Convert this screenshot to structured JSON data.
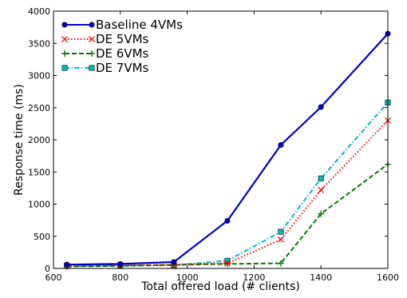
{
  "chart_data": {
    "type": "line",
    "title": "",
    "xlabel": "Total offered load (# clients)",
    "ylabel": "Response time (ms)",
    "xlim": [
      600,
      1600
    ],
    "ylim": [
      0,
      4000
    ],
    "xticks": [
      600,
      800,
      1000,
      1200,
      1400,
      1600
    ],
    "yticks": [
      0,
      500,
      1000,
      1500,
      2000,
      2500,
      3000,
      3500,
      4000
    ],
    "grid": false,
    "legend_position": "top-left",
    "series": [
      {
        "name": "Baseline 4VMs",
        "color": "#0000cc",
        "line_style": "solid",
        "marker": "circle",
        "x": [
          640,
          800,
          960,
          1120,
          1280,
          1400,
          1600
        ],
        "y": [
          60,
          70,
          100,
          740,
          1920,
          2510,
          3650
        ]
      },
      {
        "name": "DE 5VMs",
        "color": "#ff0000",
        "line_style": "dotted",
        "marker": "x",
        "x": [
          640,
          800,
          960,
          1120,
          1280,
          1400,
          1600
        ],
        "y": [
          45,
          50,
          60,
          80,
          450,
          1220,
          2300
        ]
      },
      {
        "name": "DE 6VMs",
        "color": "#007a00",
        "line_style": "dashed",
        "marker": "plus",
        "x": [
          640,
          800,
          960,
          1120,
          1280,
          1400,
          1600
        ],
        "y": [
          30,
          40,
          55,
          70,
          80,
          850,
          1620
        ]
      },
      {
        "name": "DE 7VMs",
        "color": "#00bbbb",
        "line_style": "dashdot",
        "marker": "square",
        "x": [
          640,
          800,
          960,
          1120,
          1280,
          1400,
          1600
        ],
        "y": [
          40,
          45,
          50,
          120,
          570,
          1400,
          2580
        ]
      }
    ]
  }
}
